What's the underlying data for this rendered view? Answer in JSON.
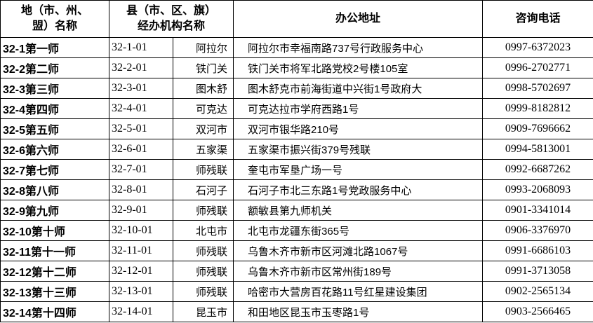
{
  "header": {
    "region": "地（市、州、\n盟）名称",
    "county": "县（市、区、旗）\n经办机构名称",
    "address": "办公地址",
    "phone": "咨询电话"
  },
  "rows": [
    {
      "region": "32-1第一师",
      "code": "32-1-01",
      "agency": "阿拉尔",
      "address": "阿拉尔市幸福南路737号行政服务中心",
      "phone": "0997-6372023"
    },
    {
      "region": "32-2第二师",
      "code": "32-2-01",
      "agency": "铁门关",
      "address": "铁门关市将军北路党校2号楼105室",
      "phone": "0996-2702771"
    },
    {
      "region": "32-3第三师",
      "code": "32-3-01",
      "agency": "图木舒",
      "address": "图木舒克市前海街道中兴街1号政府大",
      "phone": "0998-5702697"
    },
    {
      "region": "32-4第四师",
      "code": "32-4-01",
      "agency": "可克达",
      "address": "可克达拉市学府西路1号",
      "phone": "0999-8182812"
    },
    {
      "region": "32-5第五师",
      "code": "32-5-01",
      "agency": "双河市",
      "address": "双河市银华路210号",
      "phone": "0909-7696662"
    },
    {
      "region": "32-6第六师",
      "code": "32-6-01",
      "agency": "五家渠",
      "address": "五家渠市振兴街379号残联",
      "phone": "0994-5813001"
    },
    {
      "region": "32-7第七师",
      "code": "32-7-01",
      "agency": "师残联",
      "address": "奎屯市军垦广场一号",
      "phone": "0992-6687262"
    },
    {
      "region": "32-8第八师",
      "code": "32-8-01",
      "agency": "石河子",
      "address": "石河子市北三东路1号党政服务中心",
      "phone": "0993-2068093"
    },
    {
      "region": "32-9第九师",
      "code": "32-9-01",
      "agency": "师残联",
      "address": "额敏县第九师机关",
      "phone": "0901-3341014"
    },
    {
      "region": "32-10第十师",
      "code": "32-10-01",
      "agency": "北屯市",
      "address": "北屯市龙疆东街365号",
      "phone": "0906-3376970"
    },
    {
      "region": "32-11第十一师",
      "code": "32-11-01",
      "agency": "师残联",
      "address": "乌鲁木齐市新市区河滩北路1067号",
      "phone": "0991-6686103"
    },
    {
      "region": "32-12第十二师",
      "code": "32-12-01",
      "agency": "师残联",
      "address": "乌鲁木齐市新市区常州街189号",
      "phone": "0991-3713058"
    },
    {
      "region": "32-13第十三师",
      "code": "32-13-01",
      "agency": "师残联",
      "address": "哈密市大营房百花路11号红星建设集团",
      "phone": "0902-2565134"
    },
    {
      "region": "32-14第十四师",
      "code": "32-14-01",
      "agency": "昆玉市",
      "address": "和田地区昆玉市玉枣路1号",
      "phone": "0903-2566465"
    }
  ]
}
